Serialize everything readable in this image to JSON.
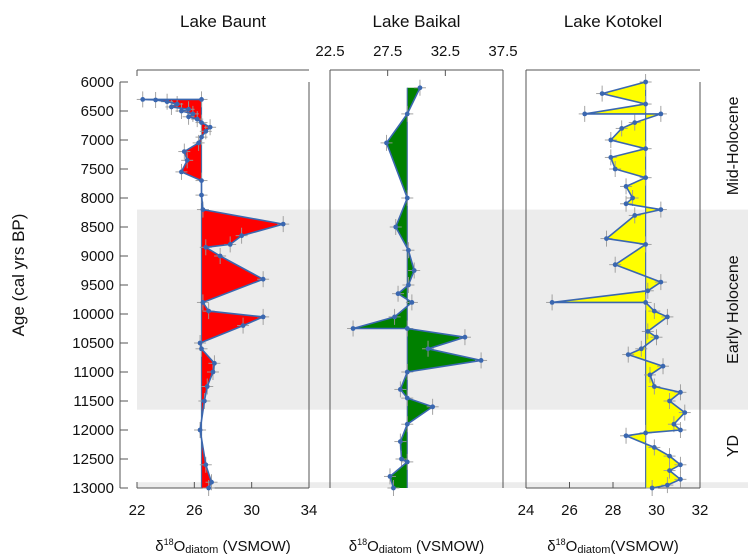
{
  "chart_data": {
    "type": "area",
    "ylabel": "Age (cal yrs BP)",
    "ylim": [
      6000,
      13000
    ],
    "y_ticks": [
      "6000",
      "6500",
      "7000",
      "7500",
      "8000",
      "8500",
      "9000",
      "9500",
      "10000",
      "10500",
      "11000",
      "11500",
      "12000",
      "12500",
      "13000"
    ],
    "y_reversed": true,
    "shaded_bands": [
      {
        "from": 8200,
        "to": 11650,
        "color": "#ececec"
      },
      {
        "from": 12900,
        "to": 13000,
        "color": "#ececec"
      }
    ],
    "phases": [
      {
        "label": "Mid-Holocene",
        "from": 6000,
        "to": 8200
      },
      {
        "label": "Early Holocene",
        "from": 8200,
        "to": 11650
      },
      {
        "label": "YD",
        "from": 11650,
        "to": 12900
      }
    ],
    "panels": [
      {
        "name": "Lake Baunt",
        "xlabel": "δ18Odiatom (VSMOW)",
        "xlabel_parts": {
          "delta": "δ",
          "sup": "18",
          "o": "O",
          "sub": "diatom",
          "rest": " (VSMOW)"
        },
        "xlim": [
          22,
          34
        ],
        "x_ticks": [
          "22",
          "26",
          "30",
          "34"
        ],
        "tick_side": "bottom",
        "baseline": 26.5,
        "fill_color": "#ff0000",
        "points": [
          [
            26.5,
            6300
          ],
          [
            22.4,
            6300
          ],
          [
            23.3,
            6310
          ],
          [
            24.1,
            6340
          ],
          [
            24.8,
            6380
          ],
          [
            24.4,
            6430
          ],
          [
            25.6,
            6470
          ],
          [
            25.1,
            6500
          ],
          [
            25.9,
            6550
          ],
          [
            25.6,
            6600
          ],
          [
            26.2,
            6640
          ],
          [
            26.5,
            6700
          ],
          [
            27.1,
            6780
          ],
          [
            26.8,
            6850
          ],
          [
            26.5,
            6950
          ],
          [
            26.3,
            7050
          ],
          [
            25.3,
            7200
          ],
          [
            25.5,
            7350
          ],
          [
            25.1,
            7550
          ],
          [
            26.5,
            7700
          ],
          [
            26.5,
            7950
          ],
          [
            26.6,
            8200
          ],
          [
            32.2,
            8450
          ],
          [
            29.3,
            8650
          ],
          [
            28.5,
            8800
          ],
          [
            26.8,
            8850
          ],
          [
            27.8,
            9000
          ],
          [
            30.8,
            9400
          ],
          [
            26.6,
            9800
          ],
          [
            27.0,
            9950
          ],
          [
            30.8,
            10050
          ],
          [
            29.4,
            10200
          ],
          [
            26.4,
            10500
          ],
          [
            26.5,
            10600
          ],
          [
            27.4,
            10850
          ],
          [
            27.3,
            11000
          ],
          [
            26.9,
            11250
          ],
          [
            26.7,
            11500
          ],
          [
            26.4,
            12000
          ],
          [
            26.8,
            12600
          ],
          [
            27.2,
            12900
          ],
          [
            27.0,
            13000
          ]
        ]
      },
      {
        "name": "Lake Baikal",
        "xlabel": "δ18Odiatom (VSMOW)",
        "xlabel_parts": {
          "delta": "δ",
          "sup": "18",
          "o": "O",
          "sub": "diatom",
          "rest": " (VSMOW)"
        },
        "xlim": [
          22.5,
          37.5
        ],
        "x_ticks": [
          "22.5",
          "27.5",
          "32.5",
          "37.5"
        ],
        "tick_side": "top",
        "baseline": 29.2,
        "fill_color": "#008000",
        "points": [
          [
            30.3,
            6100
          ],
          [
            29.2,
            6550
          ],
          [
            27.4,
            7050
          ],
          [
            29.2,
            8000
          ],
          [
            28.2,
            8500
          ],
          [
            29.3,
            8900
          ],
          [
            29.8,
            9250
          ],
          [
            29.3,
            9500
          ],
          [
            28.4,
            9650
          ],
          [
            29.6,
            9800
          ],
          [
            28.1,
            10050
          ],
          [
            24.5,
            10250
          ],
          [
            29.2,
            10250
          ],
          [
            34.2,
            10400
          ],
          [
            31.0,
            10600
          ],
          [
            35.6,
            10800
          ],
          [
            29.2,
            11000
          ],
          [
            28.6,
            11300
          ],
          [
            29.2,
            11450
          ],
          [
            31.4,
            11600
          ],
          [
            29.2,
            11900
          ],
          [
            28.6,
            12200
          ],
          [
            28.7,
            12500
          ],
          [
            29.2,
            12550
          ],
          [
            27.7,
            12800
          ],
          [
            28.0,
            13000
          ]
        ]
      },
      {
        "name": "Lake Kotokel",
        "xlabel": "δ18Odiatom(VSMOW)",
        "xlabel_parts": {
          "delta": "δ",
          "sup": "18",
          "o": "O",
          "sub": "diatom",
          "rest": "(VSMOW)"
        },
        "xlim": [
          24,
          32
        ],
        "x_ticks": [
          "24",
          "26",
          "28",
          "30",
          "32"
        ],
        "tick_side": "bottom",
        "baseline": 29.5,
        "fill_color": "#ffff00",
        "points": [
          [
            29.5,
            6000
          ],
          [
            27.5,
            6200
          ],
          [
            29.5,
            6380
          ],
          [
            26.7,
            6550
          ],
          [
            30.2,
            6550
          ],
          [
            29.0,
            6700
          ],
          [
            28.4,
            6800
          ],
          [
            27.9,
            7000
          ],
          [
            29.5,
            7150
          ],
          [
            27.9,
            7300
          ],
          [
            28.1,
            7500
          ],
          [
            29.5,
            7650
          ],
          [
            28.6,
            7800
          ],
          [
            28.9,
            8000
          ],
          [
            28.6,
            8100
          ],
          [
            30.2,
            8200
          ],
          [
            29.0,
            8300
          ],
          [
            27.7,
            8700
          ],
          [
            29.5,
            8800
          ],
          [
            28.1,
            9150
          ],
          [
            30.2,
            9450
          ],
          [
            29.6,
            9600
          ],
          [
            25.2,
            9800
          ],
          [
            29.5,
            9800
          ],
          [
            29.9,
            9950
          ],
          [
            30.5,
            10050
          ],
          [
            29.6,
            10300
          ],
          [
            30.0,
            10400
          ],
          [
            29.3,
            10600
          ],
          [
            28.7,
            10700
          ],
          [
            30.3,
            10900
          ],
          [
            29.7,
            11050
          ],
          [
            29.9,
            11250
          ],
          [
            31.1,
            11350
          ],
          [
            30.6,
            11500
          ],
          [
            31.3,
            11700
          ],
          [
            30.8,
            11900
          ],
          [
            31.1,
            12000
          ],
          [
            29.5,
            12050
          ],
          [
            28.6,
            12100
          ],
          [
            29.9,
            12300
          ],
          [
            30.6,
            12450
          ],
          [
            31.1,
            12600
          ],
          [
            30.6,
            12700
          ],
          [
            31.1,
            12850
          ],
          [
            30.5,
            12950
          ],
          [
            29.8,
            13000
          ]
        ]
      }
    ]
  }
}
